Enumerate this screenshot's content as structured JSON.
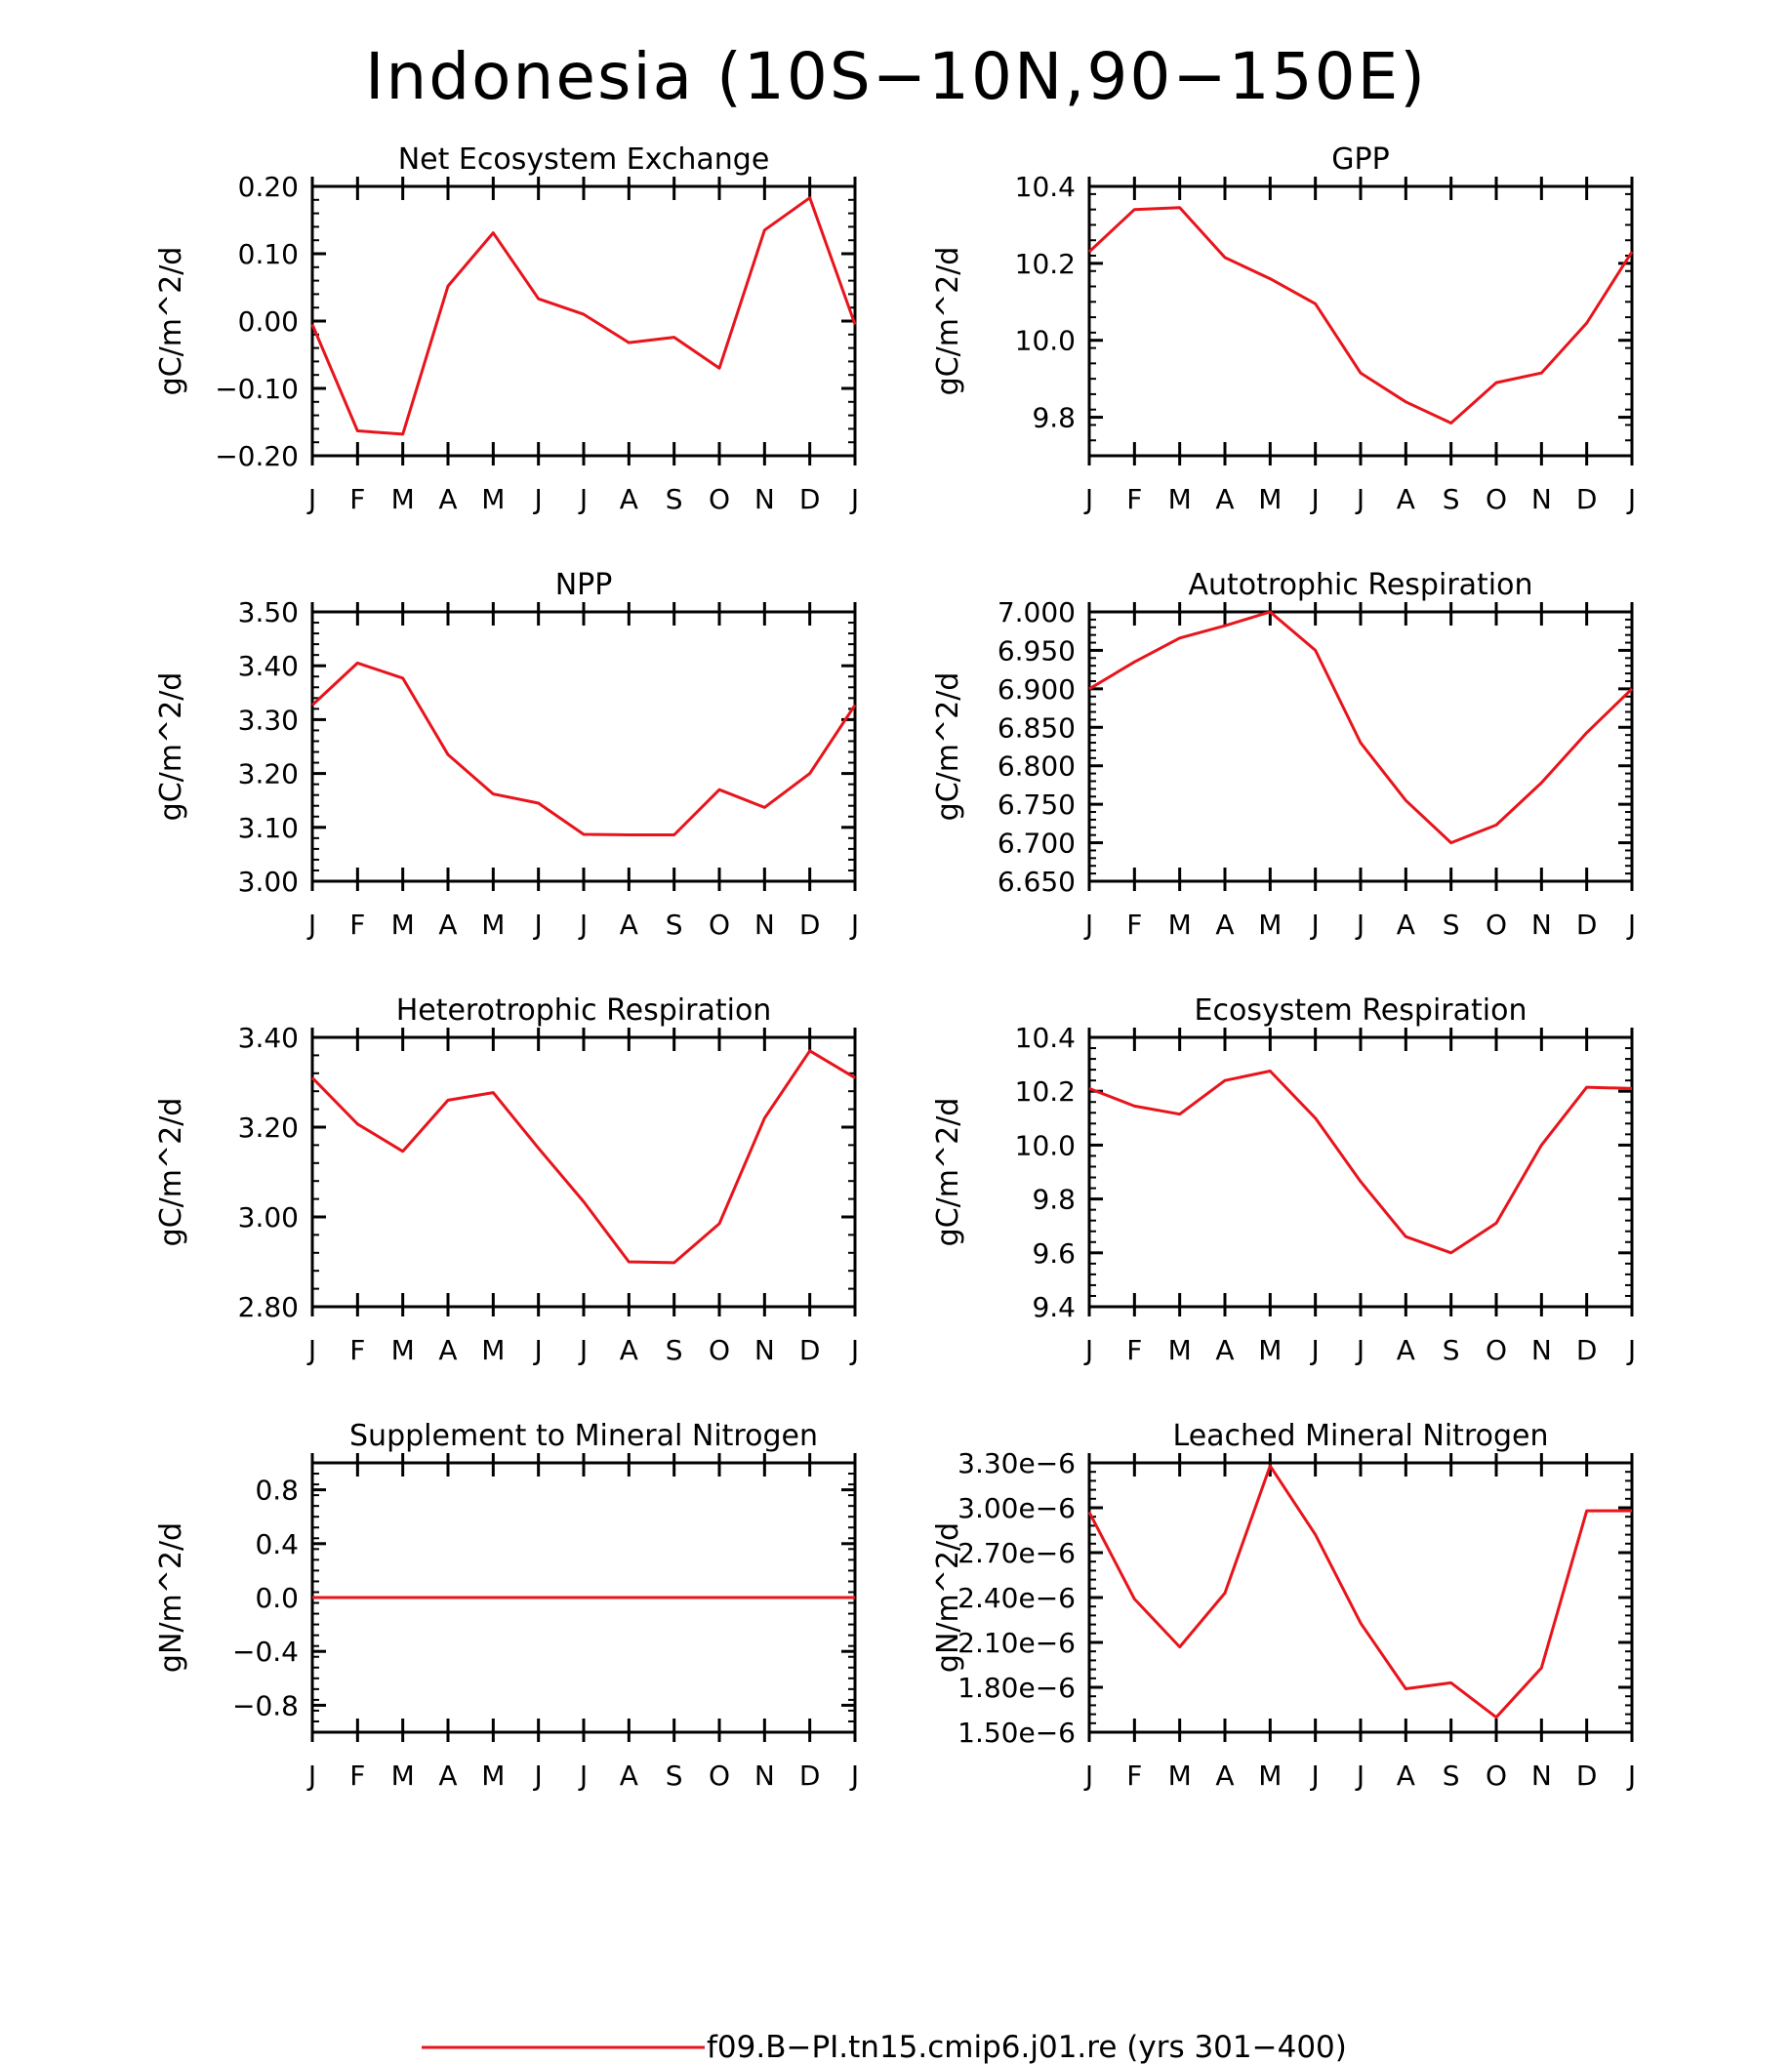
{
  "title": "Indonesia (10S−10N,90−150E)",
  "legend": {
    "label": "f09.B−PI.tn15.cmip6.j01.re (yrs 301−400)",
    "color": "#e8141c"
  },
  "line_color": "#e8141c",
  "chart_data": [
    {
      "type": "line",
      "title": "Net Ecosystem Exchange",
      "ylabel": "gC/m^2/d",
      "categories": [
        "J",
        "F",
        "M",
        "A",
        "M",
        "J",
        "J",
        "A",
        "S",
        "O",
        "N",
        "D",
        "J"
      ],
      "ylim": [
        -0.2,
        0.2
      ],
      "yticks": [
        "0.20",
        "0.10",
        "0.00",
        "−0.10",
        "−0.20"
      ],
      "ytick_values": [
        0.2,
        0.1,
        0.0,
        -0.1,
        -0.2
      ],
      "values": [
        -0.005,
        -0.163,
        -0.168,
        0.052,
        0.131,
        0.033,
        0.01,
        -0.032,
        -0.024,
        -0.07,
        0.135,
        0.183,
        -0.005
      ]
    },
    {
      "type": "line",
      "title": "GPP",
      "ylabel": "gC/m^2/d",
      "categories": [
        "J",
        "F",
        "M",
        "A",
        "M",
        "J",
        "J",
        "A",
        "S",
        "O",
        "N",
        "D",
        "J"
      ],
      "ylim": [
        9.7,
        10.4
      ],
      "yticks": [
        "10.4",
        "10.2",
        "10.0",
        "9.8"
      ],
      "ytick_values": [
        10.4,
        10.2,
        10.0,
        9.8
      ],
      "values": [
        10.23,
        10.34,
        10.345,
        10.215,
        10.16,
        10.095,
        9.915,
        9.84,
        9.785,
        9.89,
        9.915,
        10.045,
        10.23
      ]
    },
    {
      "type": "line",
      "title": "NPP",
      "ylabel": "gC/m^2/d",
      "categories": [
        "J",
        "F",
        "M",
        "A",
        "M",
        "J",
        "J",
        "A",
        "S",
        "O",
        "N",
        "D",
        "J"
      ],
      "ylim": [
        3.0,
        3.5
      ],
      "yticks": [
        "3.50",
        "3.40",
        "3.30",
        "3.20",
        "3.10",
        "3.00"
      ],
      "ytick_values": [
        3.5,
        3.4,
        3.3,
        3.2,
        3.1,
        3.0
      ],
      "values": [
        3.327,
        3.405,
        3.377,
        3.235,
        3.162,
        3.145,
        3.087,
        3.086,
        3.086,
        3.17,
        3.137,
        3.2,
        3.327
      ]
    },
    {
      "type": "line",
      "title": "Autotrophic Respiration",
      "ylabel": "gC/m^2/d",
      "categories": [
        "J",
        "F",
        "M",
        "A",
        "M",
        "J",
        "J",
        "A",
        "S",
        "O",
        "N",
        "D",
        "J"
      ],
      "ylim": [
        6.65,
        7.0
      ],
      "yticks": [
        "7.000",
        "6.950",
        "6.900",
        "6.850",
        "6.800",
        "6.750",
        "6.700",
        "6.650"
      ],
      "ytick_values": [
        7.0,
        6.95,
        6.9,
        6.85,
        6.8,
        6.75,
        6.7,
        6.65
      ],
      "values": [
        6.9,
        6.935,
        6.966,
        6.982,
        7.0,
        6.95,
        6.83,
        6.755,
        6.7,
        6.723,
        6.778,
        6.843,
        6.9
      ]
    },
    {
      "type": "line",
      "title": "Heterotrophic Respiration",
      "ylabel": "gC/m^2/d",
      "categories": [
        "J",
        "F",
        "M",
        "A",
        "M",
        "J",
        "J",
        "A",
        "S",
        "O",
        "N",
        "D",
        "J"
      ],
      "ylim": [
        2.8,
        3.4
      ],
      "yticks": [
        "3.40",
        "3.20",
        "3.00",
        "2.80"
      ],
      "ytick_values": [
        3.4,
        3.2,
        3.0,
        2.8
      ],
      "values": [
        3.31,
        3.207,
        3.146,
        3.26,
        3.277,
        3.153,
        3.034,
        2.9,
        2.898,
        2.985,
        3.22,
        3.37,
        3.31
      ]
    },
    {
      "type": "line",
      "title": "Ecosystem Respiration",
      "ylabel": "gC/m^2/d",
      "categories": [
        "J",
        "F",
        "M",
        "A",
        "M",
        "J",
        "J",
        "A",
        "S",
        "O",
        "N",
        "D",
        "J"
      ],
      "ylim": [
        9.4,
        10.4
      ],
      "yticks": [
        "10.4",
        "10.2",
        "10.0",
        "9.8",
        "9.6",
        "9.4"
      ],
      "ytick_values": [
        10.4,
        10.2,
        10.0,
        9.8,
        9.6,
        9.4
      ],
      "values": [
        10.21,
        10.145,
        10.115,
        10.24,
        10.275,
        10.1,
        9.865,
        9.66,
        9.6,
        9.71,
        10.0,
        10.215,
        10.21
      ]
    },
    {
      "type": "line",
      "title": "Supplement to Mineral Nitrogen",
      "ylabel": "gN/m^2/d",
      "categories": [
        "J",
        "F",
        "M",
        "A",
        "M",
        "J",
        "J",
        "A",
        "S",
        "O",
        "N",
        "D",
        "J"
      ],
      "ylim": [
        -1.0,
        1.0
      ],
      "yticks": [
        "0.8",
        "0.4",
        "0.0",
        "−0.4",
        "−0.8"
      ],
      "ytick_values": [
        0.8,
        0.4,
        0.0,
        -0.4,
        -0.8
      ],
      "values": [
        0,
        0,
        0,
        0,
        0,
        0,
        0,
        0,
        0,
        0,
        0,
        0,
        0
      ]
    },
    {
      "type": "line",
      "title": "Leached Mineral Nitrogen",
      "ylabel": "gN/m^2/d",
      "categories": [
        "J",
        "F",
        "M",
        "A",
        "M",
        "J",
        "J",
        "A",
        "S",
        "O",
        "N",
        "D",
        "J"
      ],
      "ylim": [
        1.5e-06,
        3.3e-06
      ],
      "yticks": [
        "3.30e−6",
        "3.00e−6",
        "2.70e−6",
        "2.40e−6",
        "2.10e−6",
        "1.80e−6",
        "1.50e−6"
      ],
      "ytick_values": [
        3.3e-06,
        3e-06,
        2.7e-06,
        2.4e-06,
        2.1e-06,
        1.8e-06,
        1.5e-06
      ],
      "values": [
        2.97e-06,
        2.39e-06,
        2.07e-06,
        2.43e-06,
        3.28e-06,
        2.82e-06,
        2.23e-06,
        1.79e-06,
        1.83e-06,
        1.6e-06,
        1.93e-06,
        2.98e-06,
        2.98e-06
      ]
    }
  ]
}
